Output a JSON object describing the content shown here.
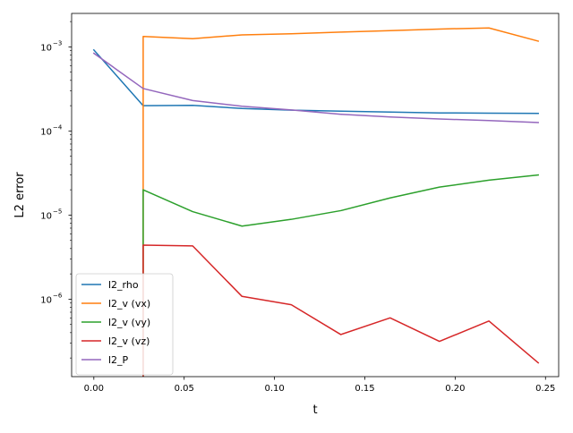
{
  "chart_data": {
    "type": "line",
    "title": "",
    "xlabel": "t",
    "ylabel": "L2 error",
    "yscale": "log",
    "xlim": [
      -0.0123,
      0.2573
    ],
    "ylim": [
      1.2e-07,
      0.0025
    ],
    "grid": false,
    "legend_position": "lower-left",
    "x_ticks": [
      0.0,
      0.05,
      0.1,
      0.15,
      0.2,
      0.25
    ],
    "x_tick_labels": [
      "0.00",
      "0.05",
      "0.10",
      "0.15",
      "0.20",
      "0.25"
    ],
    "y_ticks": [
      1e-06,
      1e-05,
      0.0001,
      0.001
    ],
    "y_tick_labels": [
      {
        "base": "10",
        "exp": "−6"
      },
      {
        "base": "10",
        "exp": "−5"
      },
      {
        "base": "10",
        "exp": "−4"
      },
      {
        "base": "10",
        "exp": "−3"
      }
    ],
    "series": [
      {
        "name": "l2_rho",
        "color": "#1f77b4",
        "x": [
          0.0,
          0.0273,
          0.0547,
          0.082,
          0.1093,
          0.1367,
          0.164,
          0.1913,
          0.2187,
          0.246
        ],
        "y": [
          0.00092,
          0.0002,
          0.000202,
          0.000185,
          0.000177,
          0.000172,
          0.000168,
          0.000164,
          0.000163,
          0.000162
        ]
      },
      {
        "name": "l2_v (vx)",
        "color": "#ff7f0e",
        "x": [
          0.0273,
          0.0273,
          0.0547,
          0.082,
          0.1093,
          0.1367,
          0.164,
          0.1913,
          0.2187,
          0.246
        ],
        "y": [
          1.2e-07,
          0.00133,
          0.00125,
          0.00139,
          0.00143,
          0.0015,
          0.00156,
          0.00163,
          0.00168,
          0.00117
        ]
      },
      {
        "name": "l2_v (vy)",
        "color": "#2ca02c",
        "x": [
          0.0273,
          0.0273,
          0.0547,
          0.082,
          0.1093,
          0.1367,
          0.164,
          0.1913,
          0.2187,
          0.246
        ],
        "y": [
          1.2e-07,
          2e-05,
          1.1e-05,
          7.4e-06,
          8.9e-06,
          1.13e-05,
          1.6e-05,
          2.15e-05,
          2.6e-05,
          3e-05
        ]
      },
      {
        "name": "l2_v (vz)",
        "color": "#d62728",
        "x": [
          0.0273,
          0.0273,
          0.0547,
          0.082,
          0.1093,
          0.1367,
          0.164,
          0.1913,
          0.2187,
          0.246
        ],
        "y": [
          1.2e-07,
          4.4e-06,
          4.3e-06,
          1.08e-06,
          8.6e-07,
          3.8e-07,
          6e-07,
          3.15e-07,
          5.5e-07,
          1.75e-07
        ]
      },
      {
        "name": "l2_P",
        "color": "#9467bd",
        "x": [
          0.0,
          0.0273,
          0.0547,
          0.082,
          0.1093,
          0.1367,
          0.164,
          0.1913,
          0.2187,
          0.246
        ],
        "y": [
          0.00084,
          0.00032,
          0.00023,
          0.000197,
          0.000178,
          0.000158,
          0.000147,
          0.000139,
          0.000133,
          0.000126
        ]
      }
    ]
  }
}
